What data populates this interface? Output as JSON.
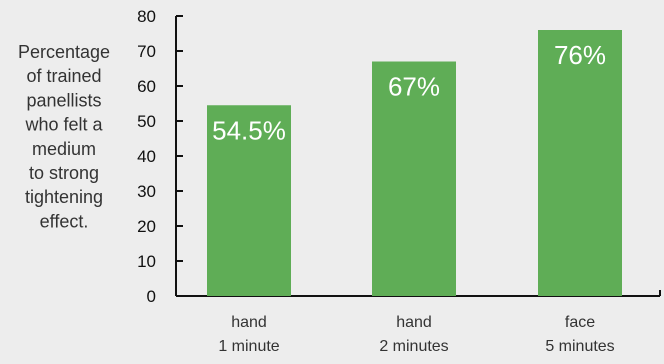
{
  "chart_data": {
    "type": "bar",
    "ylabel_lines": [
      "Percentage",
      "of trained",
      "panellists",
      "who felt a",
      "medium",
      "to strong",
      "tightening",
      "effect."
    ],
    "categories": [
      [
        "hand",
        "1 minute"
      ],
      [
        "hand",
        "2 minutes"
      ],
      [
        "face",
        "5 minutes"
      ]
    ],
    "values": [
      54.5,
      67,
      76
    ],
    "data_labels": [
      "54.5%",
      "67%",
      "76%"
    ],
    "ylim": [
      0,
      80
    ],
    "yticks": [
      0,
      10,
      20,
      30,
      40,
      50,
      60,
      70,
      80
    ],
    "bar_color": "#5fad56",
    "axis_color": "#111111",
    "text_color": "#333333",
    "background": "#ededed",
    "grid": false,
    "legend": false
  }
}
